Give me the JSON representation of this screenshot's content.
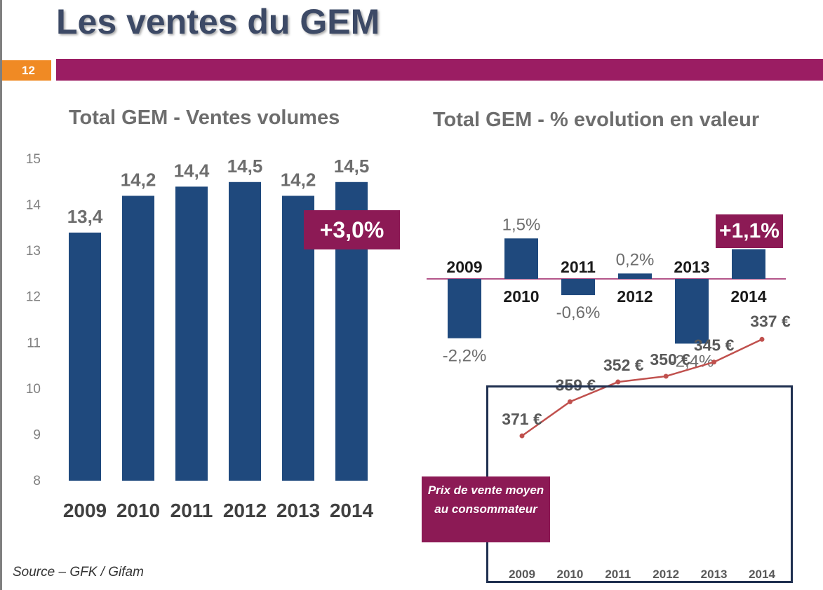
{
  "slide": {
    "title": "Les ventes du GEM",
    "page_number": "12",
    "source": "Source – GFK / Gifam",
    "accent_color": "#9b1d63",
    "page_number_color": "#f08a24"
  },
  "chart_data": [
    {
      "type": "bar",
      "title": "Total GEM - Ventes volumes",
      "categories": [
        "2009",
        "2010",
        "2011",
        "2012",
        "2013",
        "2014"
      ],
      "values": [
        13.4,
        14.2,
        14.4,
        14.5,
        14.2,
        14.5
      ],
      "value_labels": [
        "13,4",
        "14,2",
        "14,4",
        "14,5",
        "14,2",
        "14,5"
      ],
      "ylim": [
        8,
        15
      ],
      "yticks": [
        "8",
        "9",
        "10",
        "11",
        "12",
        "13",
        "14",
        "15"
      ],
      "bar_color": "#1f497d",
      "grid": false,
      "annotation": "+3,0%"
    },
    {
      "type": "bar",
      "title": "Total GEM - % evolution en valeur",
      "categories": [
        "2009",
        "2010",
        "2011",
        "2012",
        "2013",
        "2014"
      ],
      "values": [
        -2.2,
        1.5,
        -0.6,
        0.2,
        -2.4,
        1.1
      ],
      "value_labels": [
        "-2,2%",
        "1,5%",
        "-0,6%",
        "0,2%",
        "-2,4%",
        ""
      ],
      "bar_color": "#1f497d",
      "axis_color": "#9b1d63",
      "grid": false,
      "annotation": "+1,1%"
    },
    {
      "type": "line",
      "title": "Prix de vente moyen au consommateur",
      "categories": [
        "2009",
        "2010",
        "2011",
        "2012",
        "2013",
        "2014"
      ],
      "values": [
        371,
        359,
        352,
        350,
        345,
        337
      ],
      "value_labels": [
        "371 €",
        "359 €",
        "352 €",
        "350 €",
        "345 €",
        "337 €"
      ],
      "line_color": "#c0504d",
      "grid": false
    }
  ]
}
